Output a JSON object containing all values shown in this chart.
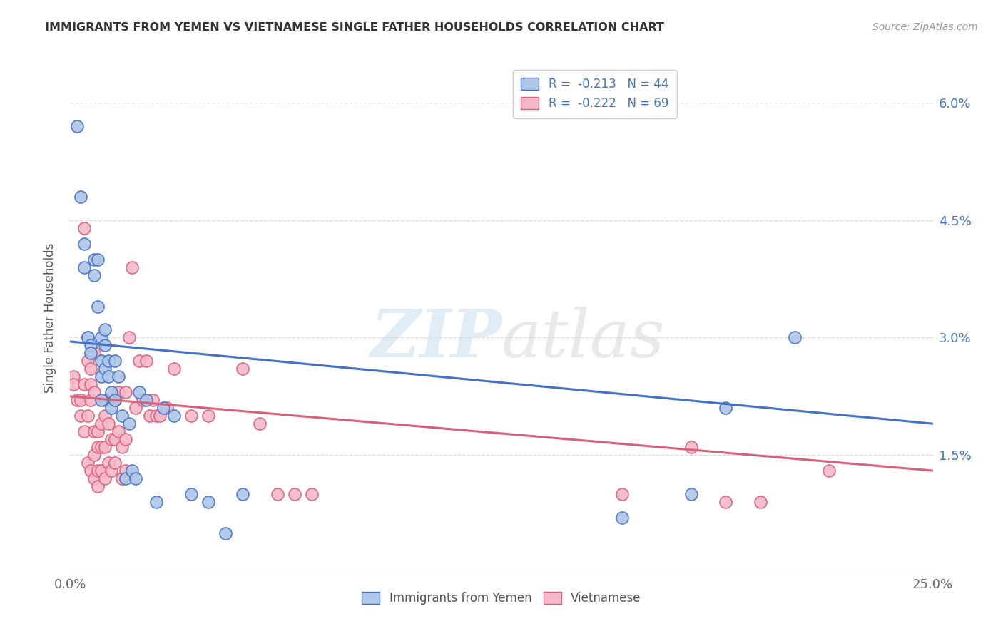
{
  "title": "IMMIGRANTS FROM YEMEN VS VIETNAMESE SINGLE FATHER HOUSEHOLDS CORRELATION CHART",
  "source": "Source: ZipAtlas.com",
  "ylabel": "Single Father Households",
  "xlim": [
    0,
    0.25
  ],
  "ylim": [
    0,
    0.065
  ],
  "yticks": [
    0,
    0.015,
    0.03,
    0.045,
    0.06
  ],
  "ytick_labels": [
    "",
    "1.5%",
    "3.0%",
    "4.5%",
    "6.0%"
  ],
  "xticks": [
    0,
    0.05,
    0.1,
    0.15,
    0.2,
    0.25
  ],
  "xtick_labels": [
    "0.0%",
    "",
    "",
    "",
    "",
    "25.0%"
  ],
  "blue_R": -0.213,
  "blue_N": 44,
  "pink_R": -0.222,
  "pink_N": 69,
  "blue_color": "#aec6e8",
  "pink_color": "#f5b8c8",
  "blue_line_color": "#4472c4",
  "pink_line_color": "#d9607a",
  "legend_text_color": "#4472c4",
  "background_color": "#ffffff",
  "grid_color": "#d8d8d8",
  "blue_x": [
    0.002,
    0.003,
    0.004,
    0.004,
    0.005,
    0.005,
    0.006,
    0.006,
    0.007,
    0.007,
    0.008,
    0.008,
    0.009,
    0.009,
    0.009,
    0.009,
    0.01,
    0.01,
    0.01,
    0.011,
    0.011,
    0.012,
    0.012,
    0.013,
    0.013,
    0.014,
    0.015,
    0.016,
    0.017,
    0.018,
    0.019,
    0.02,
    0.022,
    0.025,
    0.027,
    0.03,
    0.035,
    0.04,
    0.045,
    0.05,
    0.16,
    0.18,
    0.19,
    0.21
  ],
  "blue_y": [
    0.057,
    0.048,
    0.039,
    0.042,
    0.03,
    0.03,
    0.029,
    0.028,
    0.038,
    0.04,
    0.034,
    0.04,
    0.022,
    0.025,
    0.027,
    0.03,
    0.026,
    0.029,
    0.031,
    0.025,
    0.027,
    0.021,
    0.023,
    0.022,
    0.027,
    0.025,
    0.02,
    0.012,
    0.019,
    0.013,
    0.012,
    0.023,
    0.022,
    0.009,
    0.021,
    0.02,
    0.01,
    0.009,
    0.005,
    0.01,
    0.007,
    0.01,
    0.021,
    0.03
  ],
  "pink_x": [
    0.001,
    0.001,
    0.002,
    0.003,
    0.003,
    0.004,
    0.004,
    0.004,
    0.005,
    0.005,
    0.005,
    0.006,
    0.006,
    0.006,
    0.006,
    0.007,
    0.007,
    0.007,
    0.007,
    0.007,
    0.008,
    0.008,
    0.008,
    0.008,
    0.009,
    0.009,
    0.009,
    0.01,
    0.01,
    0.01,
    0.01,
    0.011,
    0.011,
    0.012,
    0.012,
    0.013,
    0.013,
    0.013,
    0.014,
    0.014,
    0.015,
    0.015,
    0.016,
    0.016,
    0.016,
    0.017,
    0.018,
    0.019,
    0.02,
    0.021,
    0.022,
    0.023,
    0.024,
    0.025,
    0.026,
    0.028,
    0.03,
    0.035,
    0.04,
    0.05,
    0.055,
    0.06,
    0.065,
    0.07,
    0.16,
    0.18,
    0.19,
    0.2,
    0.22
  ],
  "pink_y": [
    0.025,
    0.024,
    0.022,
    0.02,
    0.022,
    0.018,
    0.024,
    0.044,
    0.014,
    0.02,
    0.027,
    0.013,
    0.022,
    0.024,
    0.026,
    0.012,
    0.015,
    0.018,
    0.023,
    0.028,
    0.011,
    0.013,
    0.016,
    0.018,
    0.013,
    0.016,
    0.019,
    0.012,
    0.016,
    0.02,
    0.022,
    0.014,
    0.019,
    0.013,
    0.017,
    0.014,
    0.017,
    0.022,
    0.018,
    0.023,
    0.012,
    0.016,
    0.013,
    0.017,
    0.023,
    0.03,
    0.039,
    0.021,
    0.027,
    0.022,
    0.027,
    0.02,
    0.022,
    0.02,
    0.02,
    0.021,
    0.026,
    0.02,
    0.02,
    0.026,
    0.019,
    0.01,
    0.01,
    0.01,
    0.01,
    0.016,
    0.009,
    0.009,
    0.013
  ]
}
